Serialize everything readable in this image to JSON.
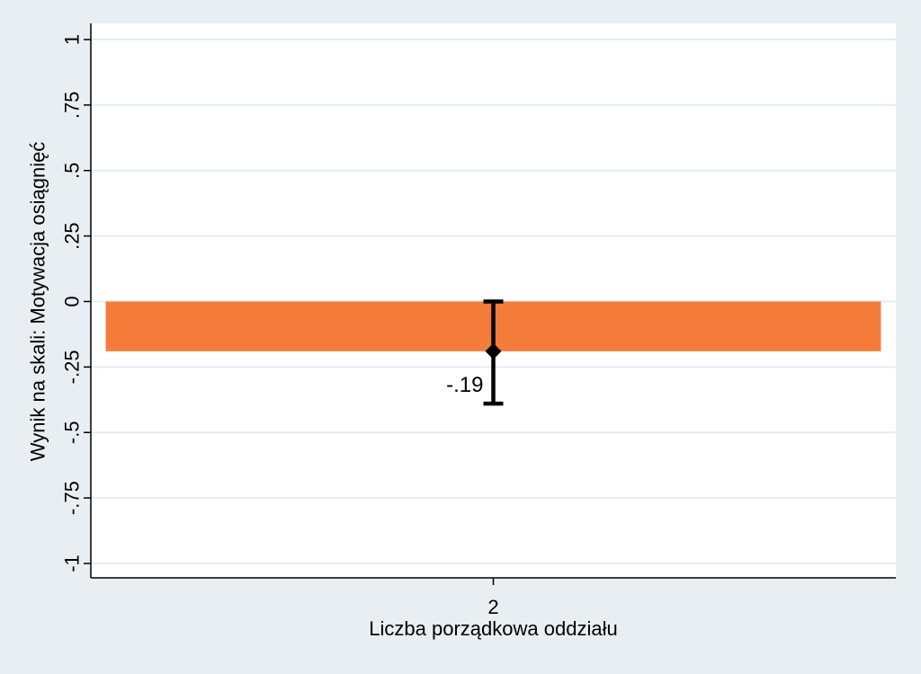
{
  "colors": {
    "background": "#e9eef2",
    "plot_background": "#ffffff",
    "gridline": "#e4ecef",
    "bar": "#f47c3a",
    "error_bar": "#000000"
  },
  "chart_data": {
    "type": "bar",
    "categories": [
      "2"
    ],
    "values": [
      -0.19
    ],
    "error_bars": [
      {
        "low": -0.39,
        "high": 0.0
      }
    ],
    "data_labels": [
      "-.19"
    ],
    "xlabel": "Liczba porządkowa oddziału",
    "ylabel": "Wynik na skali: Motywacja osiągnięć",
    "ylim": [
      -1,
      1
    ],
    "yticks": [
      1,
      0.75,
      0.5,
      0.25,
      0,
      -0.25,
      -0.5,
      -0.75,
      -1
    ],
    "ytick_labels": [
      "1",
      ".75",
      ".5",
      ".25",
      "0",
      "-.25",
      "-.5",
      "-.75",
      "-1"
    ],
    "grid": true,
    "legend": "none"
  }
}
